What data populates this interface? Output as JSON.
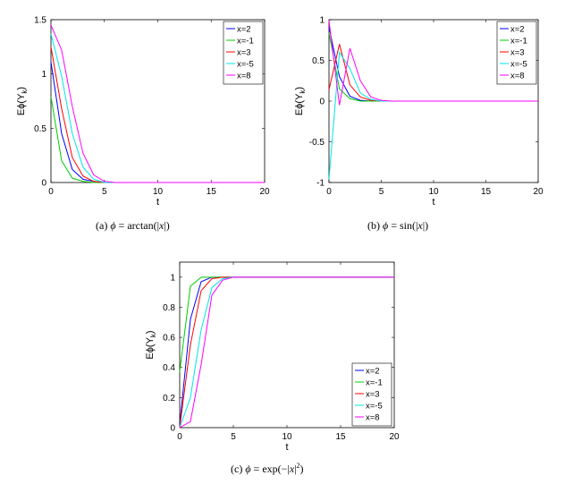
{
  "captions": [
    {
      "label": "(a)",
      "phi": "ϕ",
      "eq": "= arctan(|",
      "var": "x",
      "end": "|)"
    },
    {
      "label": "(b)",
      "phi": "ϕ",
      "eq": "= sin(|",
      "var": "x",
      "end": "|)"
    },
    {
      "label": "(c)",
      "phi": "ϕ",
      "eq": "= exp(−|",
      "var": "x",
      "end": "|",
      "sup": "2",
      "close": ")"
    }
  ],
  "colors": {
    "x=2": "#0000ff",
    "x=-1": "#00cc00",
    "x=3": "#ff0000",
    "x=-5": "#00e5e5",
    "x=8": "#ff00ff"
  },
  "chart_data": [
    {
      "type": "line",
      "xlabel": "t",
      "ylabel": "Eϕ(Yk)",
      "xlim": [
        0,
        20
      ],
      "ylim": [
        0,
        1.5
      ],
      "xticks": [
        0,
        5,
        10,
        15,
        20
      ],
      "yticks": [
        0,
        0.5,
        1,
        1.5
      ],
      "legend_position": "top-right",
      "x": [
        0,
        1,
        2,
        3,
        4,
        5,
        6,
        7,
        8,
        9,
        10,
        11,
        12,
        13,
        14,
        15,
        16,
        17,
        18,
        19,
        20
      ],
      "series": [
        {
          "name": "x=2",
          "values": [
            1.11,
            0.45,
            0.12,
            0.03,
            0.01,
            0,
            0,
            0,
            0,
            0,
            0,
            0,
            0,
            0,
            0,
            0,
            0,
            0,
            0,
            0,
            0
          ]
        },
        {
          "name": "x=-1",
          "values": [
            0.79,
            0.2,
            0.04,
            0.01,
            0,
            0,
            0,
            0,
            0,
            0,
            0,
            0,
            0,
            0,
            0,
            0,
            0,
            0,
            0,
            0,
            0
          ]
        },
        {
          "name": "x=3",
          "values": [
            1.25,
            0.68,
            0.23,
            0.06,
            0.01,
            0,
            0,
            0,
            0,
            0,
            0,
            0,
            0,
            0,
            0,
            0,
            0,
            0,
            0,
            0,
            0
          ]
        },
        {
          "name": "x=-5",
          "values": [
            1.37,
            0.98,
            0.45,
            0.14,
            0.03,
            0,
            0,
            0,
            0,
            0,
            0,
            0,
            0,
            0,
            0,
            0,
            0,
            0,
            0,
            0,
            0
          ]
        },
        {
          "name": "x=8",
          "values": [
            1.45,
            1.22,
            0.7,
            0.27,
            0.07,
            0.01,
            0,
            0,
            0,
            0,
            0,
            0,
            0,
            0,
            0,
            0,
            0,
            0,
            0,
            0,
            0
          ]
        }
      ]
    },
    {
      "type": "line",
      "xlabel": "t",
      "ylabel": "Eϕ(Yk)",
      "xlim": [
        0,
        20
      ],
      "ylim": [
        -1,
        1
      ],
      "xticks": [
        0,
        5,
        10,
        15,
        20
      ],
      "yticks": [
        -1,
        -0.5,
        0,
        0.5,
        1
      ],
      "legend_position": "top-right",
      "x": [
        0,
        1,
        2,
        3,
        4,
        5,
        6,
        7,
        8,
        9,
        10,
        11,
        12,
        13,
        14,
        15,
        16,
        17,
        18,
        19,
        20
      ],
      "series": [
        {
          "name": "x=2",
          "values": [
            0.91,
            0.3,
            0.06,
            0.01,
            0,
            0,
            0,
            0,
            0,
            0,
            0,
            0,
            0,
            0,
            0,
            0,
            0,
            0,
            0,
            0,
            0
          ]
        },
        {
          "name": "x=-1",
          "values": [
            0.84,
            0.15,
            0.03,
            0,
            0,
            0,
            0,
            0,
            0,
            0,
            0,
            0,
            0,
            0,
            0,
            0,
            0,
            0,
            0,
            0,
            0
          ]
        },
        {
          "name": "x=3",
          "values": [
            0.14,
            0.7,
            0.2,
            0.05,
            0.01,
            0,
            0,
            0,
            0,
            0,
            0,
            0,
            0,
            0,
            0,
            0,
            0,
            0,
            0,
            0,
            0
          ]
        },
        {
          "name": "x=-5",
          "values": [
            -0.96,
            0.6,
            0.4,
            0.1,
            0.02,
            0,
            0,
            0,
            0,
            0,
            0,
            0,
            0,
            0,
            0,
            0,
            0,
            0,
            0,
            0,
            0
          ]
        },
        {
          "name": "x=8",
          "values": [
            0.99,
            -0.05,
            0.65,
            0.25,
            0.05,
            0.01,
            0,
            0,
            0,
            0,
            0,
            0,
            0,
            0,
            0,
            0,
            0,
            0,
            0,
            0,
            0
          ]
        }
      ]
    },
    {
      "type": "line",
      "xlabel": "t",
      "ylabel": "Eϕ(Yk)",
      "xlim": [
        0,
        20
      ],
      "ylim": [
        0,
        1.1
      ],
      "xticks": [
        0,
        5,
        10,
        15,
        20
      ],
      "yticks": [
        0,
        0.2,
        0.4,
        0.6,
        0.8,
        1
      ],
      "legend_position": "bottom-right",
      "x": [
        0,
        1,
        2,
        3,
        4,
        5,
        6,
        7,
        8,
        9,
        10,
        11,
        12,
        13,
        14,
        15,
        16,
        17,
        18,
        19,
        20
      ],
      "series": [
        {
          "name": "x=2",
          "values": [
            0.02,
            0.72,
            0.97,
            1,
            1,
            1,
            1,
            1,
            1,
            1,
            1,
            1,
            1,
            1,
            1,
            1,
            1,
            1,
            1,
            1,
            1
          ]
        },
        {
          "name": "x=-1",
          "values": [
            0.37,
            0.94,
            1,
            1,
            1,
            1,
            1,
            1,
            1,
            1,
            1,
            1,
            1,
            1,
            1,
            1,
            1,
            1,
            1,
            1,
            1
          ]
        },
        {
          "name": "x=3",
          "values": [
            0,
            0.55,
            0.91,
            0.99,
            1,
            1,
            1,
            1,
            1,
            1,
            1,
            1,
            1,
            1,
            1,
            1,
            1,
            1,
            1,
            1,
            1
          ]
        },
        {
          "name": "x=-5",
          "values": [
            0,
            0.2,
            0.65,
            0.93,
            0.99,
            1,
            1,
            1,
            1,
            1,
            1,
            1,
            1,
            1,
            1,
            1,
            1,
            1,
            1,
            1,
            1
          ]
        },
        {
          "name": "x=8",
          "values": [
            0,
            0.04,
            0.42,
            0.88,
            0.98,
            1,
            1,
            1,
            1,
            1,
            1,
            1,
            1,
            1,
            1,
            1,
            1,
            1,
            1,
            1,
            1
          ]
        }
      ]
    }
  ]
}
